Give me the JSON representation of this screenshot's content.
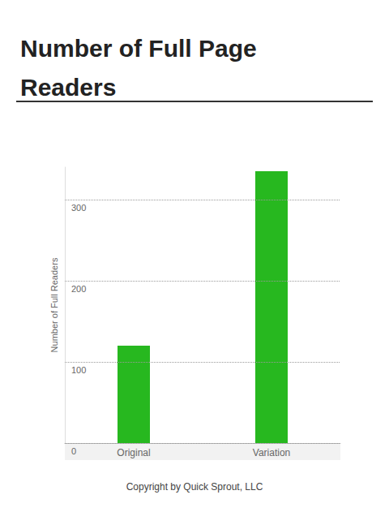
{
  "chart_data": {
    "type": "bar",
    "title": "Number of Full Page Readers",
    "y_label": "Number of Full Readers",
    "categories": [
      "Original",
      "Variation"
    ],
    "values": [
      120,
      335
    ],
    "color": "#27b81f",
    "ylim": [
      0,
      340
    ],
    "yticks": [
      0,
      100,
      200,
      300
    ],
    "grid": true,
    "caption": "Copyright by Quick Sprout, LLC"
  }
}
